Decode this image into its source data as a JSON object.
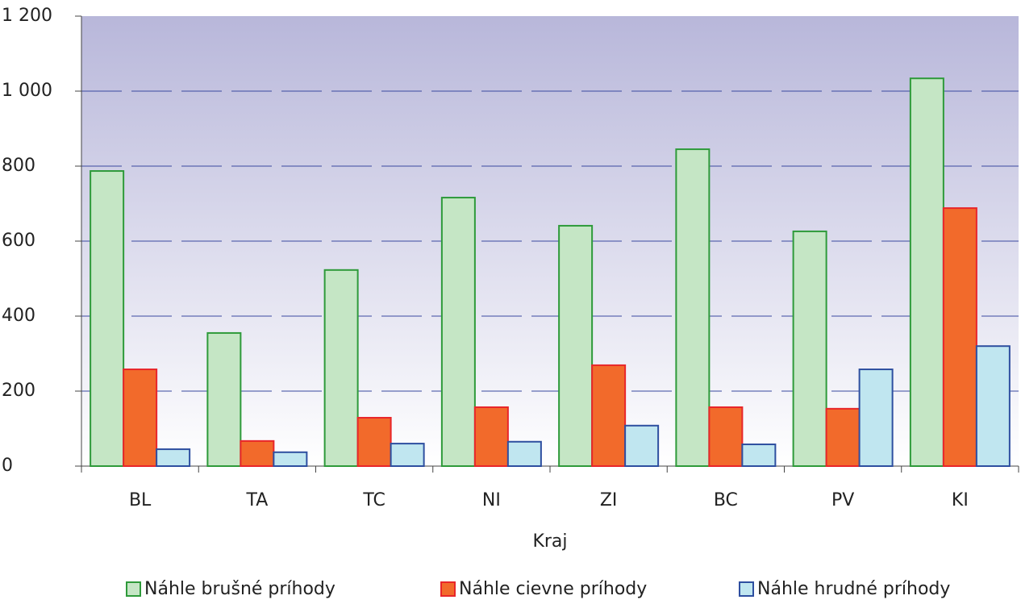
{
  "chart_data": {
    "type": "bar",
    "x_label": "Kraj",
    "categories": [
      "BL",
      "TA",
      "TC",
      "NI",
      "ZI",
      "BC",
      "PV",
      "KI"
    ],
    "series": [
      {
        "name": "Náhle brušné príhody",
        "color": "#c5e6c5",
        "stroke": "#2e9a3a",
        "values": [
          787,
          355,
          523,
          716,
          641,
          845,
          626,
          1034
        ]
      },
      {
        "name": "Náhle cievne príhody",
        "color": "#f26a2b",
        "stroke": "#e8262a",
        "values": [
          258,
          67,
          129,
          157,
          269,
          157,
          153,
          688
        ]
      },
      {
        "name": "Náhle hrudné príhody",
        "color": "#c0e6f0",
        "stroke": "#2e4fa0",
        "values": [
          45,
          37,
          60,
          65,
          108,
          58,
          258,
          320
        ]
      }
    ],
    "ylim": [
      0,
      1200
    ],
    "yticks": [
      0,
      200,
      400,
      600,
      800,
      {
        "value": 1000,
        "label": "1 000"
      },
      {
        "value": 1200,
        "label": "1 200"
      }
    ],
    "grid": true
  }
}
